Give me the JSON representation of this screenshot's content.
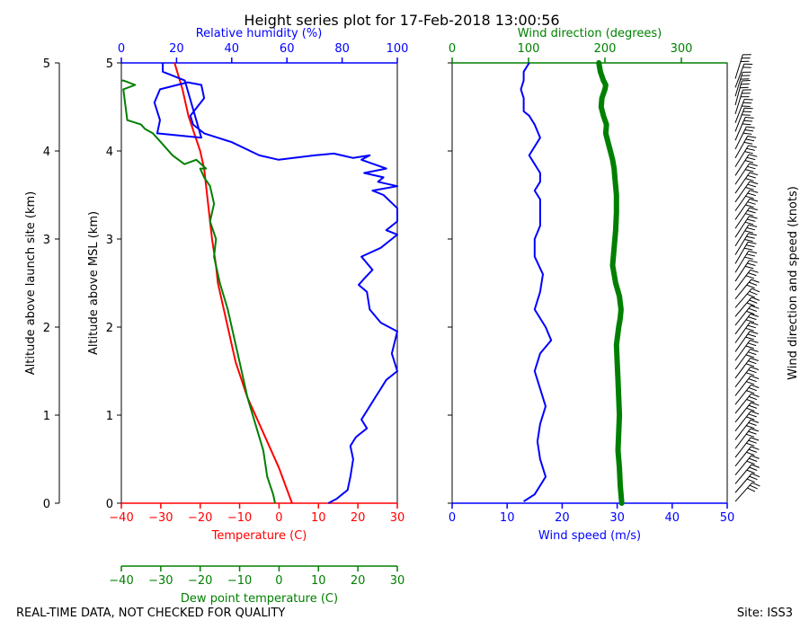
{
  "title": "Height series plot for 17-Feb-2018 13:00:56",
  "footer_left": "REAL-TIME DATA, NOT CHECKED FOR QUALITY",
  "footer_right": "Site: ISS3",
  "colors": {
    "temperature": "#ff0000",
    "dewpoint": "#008000",
    "humidity": "#0000ff",
    "wind_speed": "#0000ff",
    "wind_dir": "#008000",
    "barbs": "#000000"
  },
  "chart_data": [
    {
      "type": "line",
      "panel": "thermo",
      "title": "",
      "ylabel_outer": "Altitude above launch site (km)",
      "ylabel": "Altitude above MSL (km)",
      "ylim": [
        0,
        5
      ],
      "yticks": [
        0,
        1,
        2,
        3,
        4,
        5
      ],
      "yticks_outer": [
        0,
        1,
        2,
        3,
        4,
        5
      ],
      "axes": {
        "temperature": {
          "label": "Temperature (C)",
          "lim": [
            -40,
            30
          ],
          "ticks": [
            -40,
            -30,
            -20,
            -10,
            0,
            10,
            20,
            30
          ]
        },
        "dewpoint": {
          "label": "Dew point temperature (C)",
          "lim": [
            -40,
            30
          ],
          "ticks": [
            -40,
            -30,
            -20,
            -10,
            0,
            10,
            20,
            30
          ]
        },
        "humidity": {
          "label": "Relative humidity (%)",
          "lim": [
            0,
            100
          ],
          "ticks": [
            0,
            20,
            40,
            60,
            80,
            100
          ]
        }
      },
      "series": [
        {
          "name": "Temperature",
          "axis": "temperature",
          "x": [
            3.3,
            0,
            -5,
            -8,
            -9.5,
            -11,
            -12,
            -13,
            -14,
            -15,
            -15.5,
            -16,
            -17,
            -18,
            -19,
            -20,
            -21.5,
            -23,
            -24.5,
            -26.5
          ],
          "y": [
            0,
            0.4,
            0.9,
            1.2,
            1.4,
            1.6,
            1.8,
            2.0,
            2.2,
            2.4,
            2.5,
            2.7,
            3.0,
            3.4,
            3.8,
            4.0,
            4.2,
            4.4,
            4.7,
            5.0
          ]
        },
        {
          "name": "Dew point",
          "axis": "dewpoint",
          "x": [
            -1,
            -1.5,
            -3,
            -4,
            -6,
            -8,
            -9,
            -10,
            -11,
            -12,
            -13,
            -15,
            -16.5,
            -16,
            -17.5,
            -16.5,
            -17.5,
            -19,
            -20,
            -18.5,
            -21,
            -24,
            -27,
            -30,
            -32,
            -34,
            -35,
            -38.5,
            -39.5,
            -36.5,
            -39.5,
            -40
          ],
          "y": [
            0,
            0.1,
            0.3,
            0.6,
            0.9,
            1.2,
            1.4,
            1.6,
            1.8,
            2.0,
            2.2,
            2.5,
            2.8,
            3.0,
            3.2,
            3.4,
            3.6,
            3.7,
            3.8,
            3.8,
            3.9,
            3.85,
            3.95,
            4.1,
            4.2,
            4.25,
            4.3,
            4.35,
            4.7,
            4.75,
            4.8,
            4.8
          ]
        },
        {
          "name": "Relative humidity",
          "axis": "humidity",
          "x": [
            75,
            78,
            82,
            83,
            84,
            83,
            85,
            89,
            87,
            90,
            92,
            94,
            96,
            100,
            98,
            100,
            94,
            90,
            89,
            86,
            88,
            91,
            87,
            94,
            100,
            96,
            100,
            100,
            95,
            91,
            100,
            93,
            95,
            88,
            96,
            87,
            90,
            84,
            77,
            70,
            57,
            50,
            40,
            30,
            28,
            26,
            25,
            30,
            29,
            24,
            14,
            12,
            13,
            14,
            13,
            29,
            23,
            15,
            15
          ],
          "y": [
            0,
            0.05,
            0.15,
            0.3,
            0.5,
            0.65,
            0.75,
            0.85,
            0.95,
            1.1,
            1.2,
            1.3,
            1.4,
            1.5,
            1.7,
            1.95,
            2.05,
            2.2,
            2.4,
            2.48,
            2.55,
            2.65,
            2.8,
            2.9,
            3.05,
            3.1,
            3.2,
            3.35,
            3.5,
            3.55,
            3.6,
            3.65,
            3.7,
            3.75,
            3.8,
            3.9,
            3.95,
            3.92,
            3.97,
            3.95,
            3.9,
            3.95,
            4.1,
            4.2,
            4.25,
            4.3,
            4.4,
            4.6,
            4.75,
            4.78,
            4.7,
            4.55,
            4.45,
            4.35,
            4.2,
            4.15,
            4.8,
            4.9,
            5.0
          ]
        }
      ]
    },
    {
      "type": "line",
      "panel": "wind",
      "ylim": [
        0,
        5
      ],
      "axes": {
        "wind_speed": {
          "label": "Wind speed (m/s)",
          "lim": [
            0,
            50
          ],
          "ticks": [
            0,
            10,
            20,
            30,
            40,
            50
          ]
        },
        "wind_dir": {
          "label": "Wind direction (degrees)",
          "lim": [
            0,
            360
          ],
          "ticks": [
            0,
            100,
            200,
            300
          ]
        }
      },
      "barbs_label": "Wind direction and speed (knots)",
      "series": [
        {
          "name": "Wind speed",
          "axis": "wind_speed",
          "x": [
            13,
            15,
            17,
            16,
            15.5,
            16,
            17,
            16,
            15,
            16,
            18,
            17,
            15,
            16,
            16.5,
            15,
            15,
            16,
            16,
            16,
            15,
            16,
            16,
            15,
            14,
            15,
            16,
            15,
            14,
            13,
            13,
            13,
            12.5,
            13,
            13,
            14
          ],
          "y": [
            0.02,
            0.1,
            0.3,
            0.5,
            0.7,
            0.9,
            1.1,
            1.3,
            1.5,
            1.7,
            1.85,
            2.0,
            2.2,
            2.4,
            2.6,
            2.8,
            3.0,
            3.15,
            3.3,
            3.45,
            3.55,
            3.65,
            3.75,
            3.85,
            3.95,
            4.05,
            4.15,
            4.3,
            4.4,
            4.45,
            4.5,
            4.6,
            4.7,
            4.8,
            4.9,
            5.0
          ]
        },
        {
          "name": "Wind direction",
          "axis": "wind_dir",
          "x": [
            222,
            220,
            219,
            217,
            218,
            219,
            218,
            217,
            216,
            215,
            218,
            220,
            221,
            219,
            214,
            210,
            212,
            214,
            215,
            215,
            214,
            213,
            212,
            210,
            207,
            204,
            201,
            202,
            198,
            195,
            196,
            200,
            201,
            198,
            194,
            192
          ],
          "y": [
            0,
            0.2,
            0.4,
            0.6,
            0.8,
            1.0,
            1.2,
            1.4,
            1.6,
            1.8,
            2.0,
            2.1,
            2.2,
            2.35,
            2.5,
            2.7,
            2.9,
            3.1,
            3.3,
            3.5,
            3.6,
            3.7,
            3.8,
            3.9,
            4.0,
            4.1,
            4.2,
            4.3,
            4.4,
            4.5,
            4.6,
            4.7,
            4.75,
            4.8,
            4.9,
            5.0
          ]
        }
      ]
    }
  ]
}
